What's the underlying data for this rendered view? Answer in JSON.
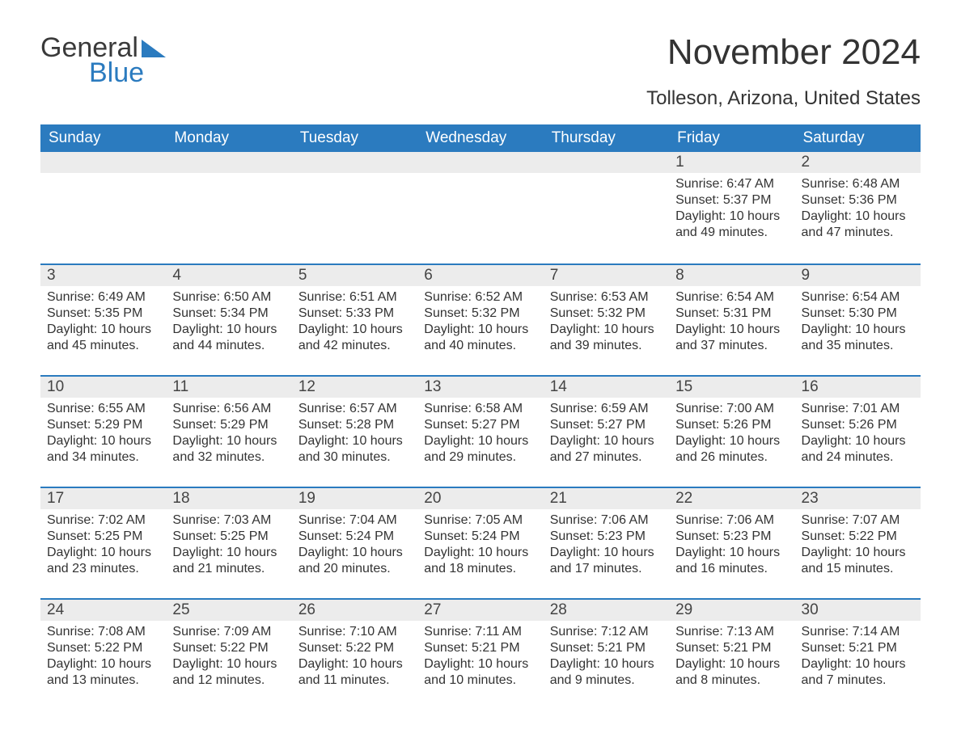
{
  "logo": {
    "line1": "General",
    "line2": "Blue",
    "text_color": "#3a3a3a",
    "accent_color": "#2b7bbf"
  },
  "title": "November 2024",
  "location": "Tolleson, Arizona, United States",
  "header_bg": "#2b7bbf",
  "header_text_color": "#ffffff",
  "daynum_bg": "#ececec",
  "row_divider_color": "#2b7bbf",
  "body_text_color": "#333333",
  "background_color": "#ffffff",
  "font_family": "Arial",
  "title_fontsize": 44,
  "location_fontsize": 24,
  "header_fontsize": 19,
  "body_fontsize": 16,
  "weekdays": [
    "Sunday",
    "Monday",
    "Tuesday",
    "Wednesday",
    "Thursday",
    "Friday",
    "Saturday"
  ],
  "weeks": [
    [
      null,
      null,
      null,
      null,
      null,
      {
        "day": "1",
        "sunrise": "6:47 AM",
        "sunset": "5:37 PM",
        "daylight": "10 hours and 49 minutes."
      },
      {
        "day": "2",
        "sunrise": "6:48 AM",
        "sunset": "5:36 PM",
        "daylight": "10 hours and 47 minutes."
      }
    ],
    [
      {
        "day": "3",
        "sunrise": "6:49 AM",
        "sunset": "5:35 PM",
        "daylight": "10 hours and 45 minutes."
      },
      {
        "day": "4",
        "sunrise": "6:50 AM",
        "sunset": "5:34 PM",
        "daylight": "10 hours and 44 minutes."
      },
      {
        "day": "5",
        "sunrise": "6:51 AM",
        "sunset": "5:33 PM",
        "daylight": "10 hours and 42 minutes."
      },
      {
        "day": "6",
        "sunrise": "6:52 AM",
        "sunset": "5:32 PM",
        "daylight": "10 hours and 40 minutes."
      },
      {
        "day": "7",
        "sunrise": "6:53 AM",
        "sunset": "5:32 PM",
        "daylight": "10 hours and 39 minutes."
      },
      {
        "day": "8",
        "sunrise": "6:54 AM",
        "sunset": "5:31 PM",
        "daylight": "10 hours and 37 minutes."
      },
      {
        "day": "9",
        "sunrise": "6:54 AM",
        "sunset": "5:30 PM",
        "daylight": "10 hours and 35 minutes."
      }
    ],
    [
      {
        "day": "10",
        "sunrise": "6:55 AM",
        "sunset": "5:29 PM",
        "daylight": "10 hours and 34 minutes."
      },
      {
        "day": "11",
        "sunrise": "6:56 AM",
        "sunset": "5:29 PM",
        "daylight": "10 hours and 32 minutes."
      },
      {
        "day": "12",
        "sunrise": "6:57 AM",
        "sunset": "5:28 PM",
        "daylight": "10 hours and 30 minutes."
      },
      {
        "day": "13",
        "sunrise": "6:58 AM",
        "sunset": "5:27 PM",
        "daylight": "10 hours and 29 minutes."
      },
      {
        "day": "14",
        "sunrise": "6:59 AM",
        "sunset": "5:27 PM",
        "daylight": "10 hours and 27 minutes."
      },
      {
        "day": "15",
        "sunrise": "7:00 AM",
        "sunset": "5:26 PM",
        "daylight": "10 hours and 26 minutes."
      },
      {
        "day": "16",
        "sunrise": "7:01 AM",
        "sunset": "5:26 PM",
        "daylight": "10 hours and 24 minutes."
      }
    ],
    [
      {
        "day": "17",
        "sunrise": "7:02 AM",
        "sunset": "5:25 PM",
        "daylight": "10 hours and 23 minutes."
      },
      {
        "day": "18",
        "sunrise": "7:03 AM",
        "sunset": "5:25 PM",
        "daylight": "10 hours and 21 minutes."
      },
      {
        "day": "19",
        "sunrise": "7:04 AM",
        "sunset": "5:24 PM",
        "daylight": "10 hours and 20 minutes."
      },
      {
        "day": "20",
        "sunrise": "7:05 AM",
        "sunset": "5:24 PM",
        "daylight": "10 hours and 18 minutes."
      },
      {
        "day": "21",
        "sunrise": "7:06 AM",
        "sunset": "5:23 PM",
        "daylight": "10 hours and 17 minutes."
      },
      {
        "day": "22",
        "sunrise": "7:06 AM",
        "sunset": "5:23 PM",
        "daylight": "10 hours and 16 minutes."
      },
      {
        "day": "23",
        "sunrise": "7:07 AM",
        "sunset": "5:22 PM",
        "daylight": "10 hours and 15 minutes."
      }
    ],
    [
      {
        "day": "24",
        "sunrise": "7:08 AM",
        "sunset": "5:22 PM",
        "daylight": "10 hours and 13 minutes."
      },
      {
        "day": "25",
        "sunrise": "7:09 AM",
        "sunset": "5:22 PM",
        "daylight": "10 hours and 12 minutes."
      },
      {
        "day": "26",
        "sunrise": "7:10 AM",
        "sunset": "5:22 PM",
        "daylight": "10 hours and 11 minutes."
      },
      {
        "day": "27",
        "sunrise": "7:11 AM",
        "sunset": "5:21 PM",
        "daylight": "10 hours and 10 minutes."
      },
      {
        "day": "28",
        "sunrise": "7:12 AM",
        "sunset": "5:21 PM",
        "daylight": "10 hours and 9 minutes."
      },
      {
        "day": "29",
        "sunrise": "7:13 AM",
        "sunset": "5:21 PM",
        "daylight": "10 hours and 8 minutes."
      },
      {
        "day": "30",
        "sunrise": "7:14 AM",
        "sunset": "5:21 PM",
        "daylight": "10 hours and 7 minutes."
      }
    ]
  ],
  "labels": {
    "sunrise": "Sunrise:",
    "sunset": "Sunset:",
    "daylight": "Daylight:"
  }
}
